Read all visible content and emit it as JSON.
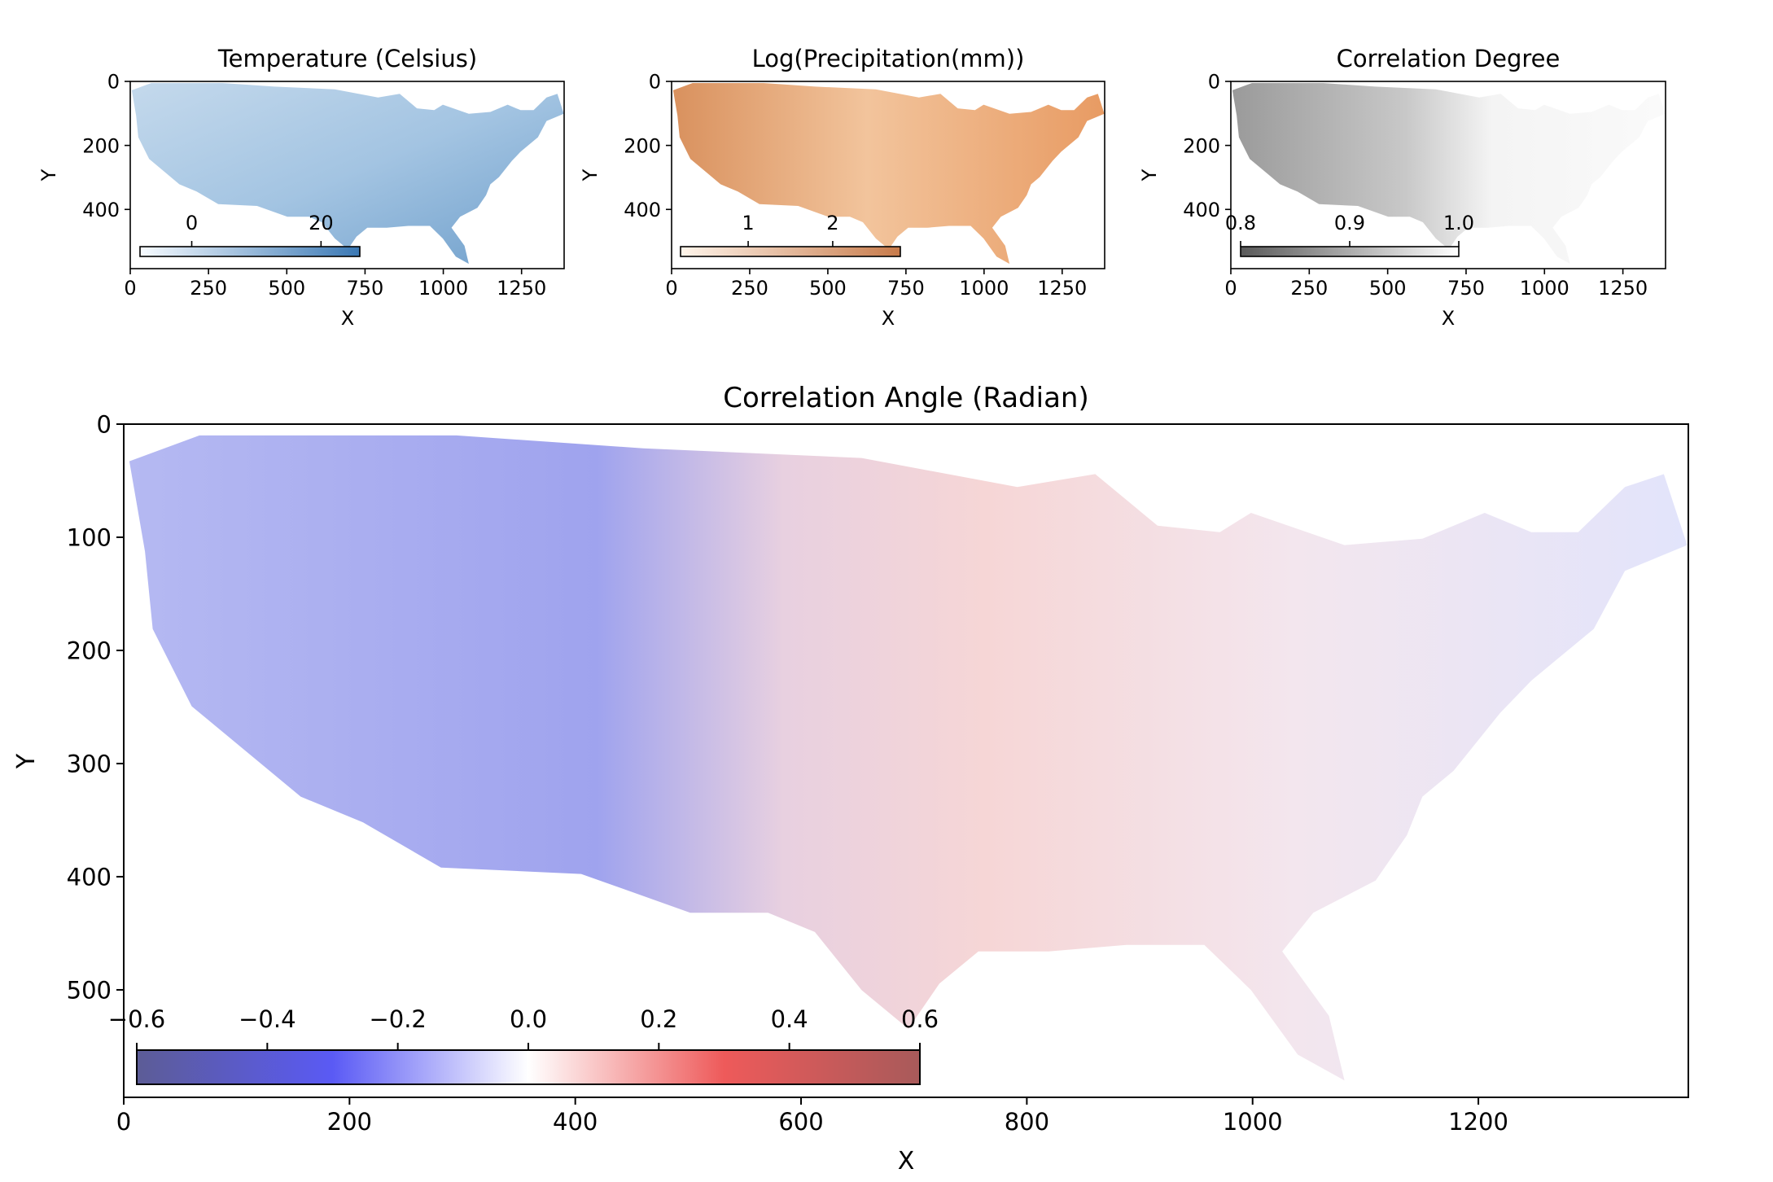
{
  "chart_data": [
    {
      "type": "heatmap",
      "title": "Temperature (Celsius)",
      "xlabel": "X",
      "ylabel": "Y",
      "xlim": [
        0,
        1386
      ],
      "ylim": [
        585,
        0
      ],
      "xticks": [
        "0",
        "250",
        "500",
        "750",
        "1000",
        "1250"
      ],
      "xtick_values": [
        0,
        250,
        500,
        750,
        1000,
        1250
      ],
      "yticks": [
        "0",
        "200",
        "400"
      ],
      "ytick_values": [
        0,
        200,
        400
      ],
      "colormap": "Blues",
      "colorbar": {
        "ticks": [
          "0",
          "20"
        ],
        "tick_values": [
          0,
          20
        ],
        "range": [
          -8,
          26
        ],
        "low_color": "#f7fbff",
        "high_color": "#3a78b4"
      }
    },
    {
      "type": "heatmap",
      "title": "Log(Precipitation(mm))",
      "xlabel": "X",
      "ylabel": "Y",
      "xlim": [
        0,
        1386
      ],
      "ylim": [
        585,
        0
      ],
      "xticks": [
        "0",
        "250",
        "500",
        "750",
        "1000",
        "1250"
      ],
      "xtick_values": [
        0,
        250,
        500,
        750,
        1000,
        1250
      ],
      "yticks": [
        "0",
        "200",
        "400"
      ],
      "ytick_values": [
        0,
        200,
        400
      ],
      "colormap": "Oranges",
      "colorbar": {
        "ticks": [
          "1",
          "2"
        ],
        "tick_values": [
          1,
          2
        ],
        "range": [
          0.2,
          2.8
        ],
        "low_color": "#fff5eb",
        "high_color": "#c77a4a"
      }
    },
    {
      "type": "heatmap",
      "title": "Correlation Degree",
      "xlabel": "X",
      "ylabel": "Y",
      "xlim": [
        0,
        1386
      ],
      "ylim": [
        585,
        0
      ],
      "xticks": [
        "0",
        "250",
        "500",
        "750",
        "1000",
        "1250"
      ],
      "xtick_values": [
        0,
        250,
        500,
        750,
        1000,
        1250
      ],
      "yticks": [
        "0",
        "200",
        "400"
      ],
      "ytick_values": [
        0,
        200,
        400
      ],
      "colormap": "Greys_r",
      "colorbar": {
        "ticks": [
          "0.8",
          "0.9",
          "1.0"
        ],
        "tick_values": [
          0.8,
          0.9,
          1.0
        ],
        "range": [
          0.8,
          1.0
        ],
        "low_color": "#595959",
        "high_color": "#ffffff"
      }
    },
    {
      "type": "heatmap",
      "title": "Correlation Angle (Radian)",
      "xlabel": "X",
      "ylabel": "Y",
      "xlim": [
        0,
        1386
      ],
      "ylim": [
        595,
        0
      ],
      "xticks": [
        "0",
        "200",
        "400",
        "600",
        "800",
        "1000",
        "1200"
      ],
      "xtick_values": [
        0,
        200,
        400,
        600,
        800,
        1000,
        1200
      ],
      "yticks": [
        "0",
        "100",
        "200",
        "300",
        "400",
        "500"
      ],
      "ytick_values": [
        0,
        100,
        200,
        300,
        400,
        500
      ],
      "colormap": "seismic",
      "colorbar": {
        "ticks": [
          "−0.6",
          "−0.4",
          "−0.2",
          "0.0",
          "0.2",
          "0.4",
          "0.6"
        ],
        "tick_values": [
          -0.6,
          -0.4,
          -0.2,
          0.0,
          0.2,
          0.4,
          0.6
        ],
        "range": [
          -0.6,
          0.6
        ],
        "stops": [
          "#5c5c96",
          "#5a5af5",
          "#ffffff",
          "#ee5a5a",
          "#a85a5a"
        ]
      }
    }
  ]
}
